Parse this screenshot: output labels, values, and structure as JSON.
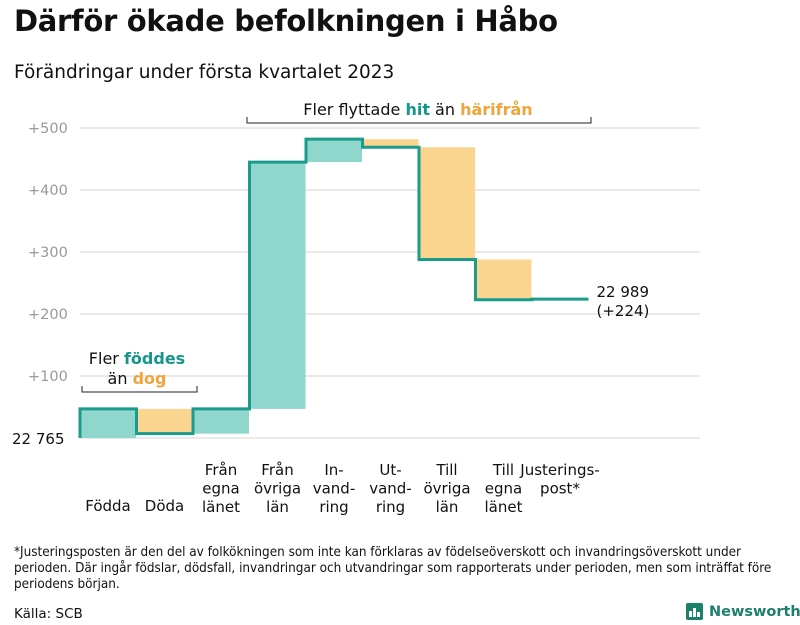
{
  "title": "Därför ökade befolkningen i Håbo",
  "subtitle": "Förändringar under första kvartalet 2023",
  "colors": {
    "increase": "#8fd6cc",
    "decrease": "#fbd590",
    "line": "#1a9b8c",
    "teal_text": "#15968a",
    "orange_text": "#f0a53c",
    "grid": "#dddddd",
    "tick": "#999999"
  },
  "chart_data": {
    "type": "waterfall",
    "ylabel_unit": "change in population",
    "ylim": [
      0,
      500
    ],
    "y_ticks": [
      "+100",
      "+200",
      "+300",
      "+400",
      "+500"
    ],
    "start_label": "22 765",
    "end_label": "22 989",
    "end_change_label": "(+224)",
    "steps": [
      {
        "key": "fodda",
        "lines": [
          "Födda"
        ],
        "value": 47
      },
      {
        "key": "doda",
        "lines": [
          "Döda"
        ],
        "value": -40
      },
      {
        "key": "fran_egna",
        "lines": [
          "Från",
          "egna",
          "länet"
        ],
        "value": 40
      },
      {
        "key": "fran_ovriga",
        "lines": [
          "Från",
          "övriga",
          "län"
        ],
        "value": 398
      },
      {
        "key": "invandring",
        "lines": [
          "In-",
          "vand-",
          "ring"
        ],
        "value": 37
      },
      {
        "key": "utvandring",
        "lines": [
          "Ut-",
          "vand-",
          "ring"
        ],
        "value": -13
      },
      {
        "key": "till_ovriga",
        "lines": [
          "Till",
          "övriga",
          "län"
        ],
        "value": -181
      },
      {
        "key": "till_egna",
        "lines": [
          "Till",
          "egna",
          "länet"
        ],
        "value": -65
      },
      {
        "key": "justering",
        "lines": [
          "Justerings-",
          "post*"
        ],
        "value": 1
      }
    ],
    "annotations": {
      "born_pre": "Fler ",
      "born_em": "föddes",
      "died_pre": "än ",
      "died_em": "dog",
      "move_pre": "Fler flyttade ",
      "move_em1": "hit",
      "move_mid": " än ",
      "move_em2": "härifrån"
    }
  },
  "footnote": "*Justeringsposten är den del av folkökningen som inte kan förklaras av födelseöverskott och invandringsöverskott under perioden. Där ingår födslar, dödsfall, invandringar och utvandringar som rapporterats under perioden, men som inträffat före periodens början.",
  "source": "Källa: SCB",
  "brand": "Newsworthy",
  "brand_icon": "bar-chart-icon"
}
